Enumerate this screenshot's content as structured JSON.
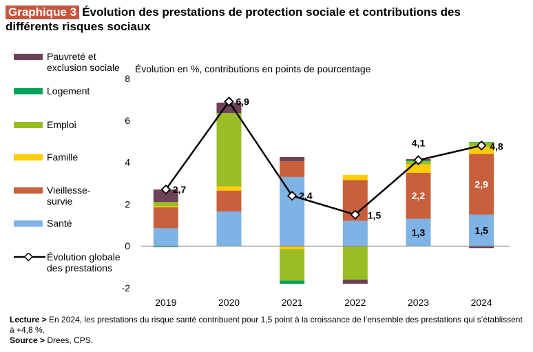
{
  "header": {
    "badge": "Graphique 3",
    "title": "Évolution des prestations de protection sociale et contributions des différents risques sociaux"
  },
  "legend": [
    {
      "label": "Pauvreté et exclusion sociale",
      "color": "#6d4256",
      "key": "pauvrete"
    },
    {
      "label": "Logement",
      "color": "#00a35a",
      "key": "logement"
    },
    {
      "label": "Emploi",
      "color": "#9abd25",
      "key": "emploi"
    },
    {
      "label": "Famille",
      "color": "#ffcc00",
      "key": "famille"
    },
    {
      "label": "Vieillesse-survie",
      "color": "#c8603d",
      "key": "vieillesse"
    },
    {
      "label": "Santé",
      "color": "#7fb2e5",
      "key": "sante"
    }
  ],
  "line_legend": "Évolution globale des prestations",
  "chart_data": {
    "type": "bar",
    "stacked": true,
    "subtitle": "Évolution en %, contributions en points de pourcentage",
    "categories": [
      "2019",
      "2020",
      "2021",
      "2022",
      "2023",
      "2024"
    ],
    "ylim": [
      -2,
      8
    ],
    "yticks": [
      -2,
      0,
      2,
      4,
      6,
      8
    ],
    "series": [
      {
        "name": "Santé",
        "key": "sante",
        "color": "#7fb2e5",
        "values": [
          0.85,
          1.65,
          3.3,
          1.2,
          1.3,
          1.5
        ]
      },
      {
        "name": "Vieillesse-survie",
        "key": "vieillesse",
        "color": "#c8603d",
        "values": [
          1.0,
          1.0,
          0.75,
          1.95,
          2.2,
          2.9
        ]
      },
      {
        "name": "Famille",
        "key": "famille",
        "color": "#ffcc00",
        "values": [
          0.05,
          0.2,
          -0.15,
          0.25,
          0.4,
          0.35
        ]
      },
      {
        "name": "Emploi",
        "key": "emploi",
        "color": "#9abd25",
        "values": [
          0.2,
          3.5,
          -1.5,
          -1.6,
          0.15,
          0.2
        ]
      },
      {
        "name": "Logement",
        "key": "logement",
        "color": "#00a35a",
        "values": [
          -0.05,
          0.0,
          -0.15,
          0.0,
          0.05,
          0.02
        ]
      },
      {
        "name": "Pauvreté et exclusion sociale",
        "key": "pauvrete",
        "color": "#6d4256",
        "values": [
          0.6,
          0.5,
          0.2,
          -0.2,
          0.05,
          -0.1
        ]
      }
    ],
    "line": {
      "name": "Évolution globale des prestations",
      "values": [
        2.7,
        6.9,
        2.4,
        1.5,
        4.1,
        4.8
      ],
      "labels": [
        "2,7",
        "6,9",
        "2,4",
        "1,5",
        "4,1",
        "4,8"
      ]
    },
    "data_labels": [
      {
        "category": "2023",
        "series": "sante",
        "text": "1,3"
      },
      {
        "category": "2023",
        "series": "vieillesse",
        "text": "2,2"
      },
      {
        "category": "2024",
        "series": "sante",
        "text": "1,5"
      },
      {
        "category": "2024",
        "series": "vieillesse",
        "text": "2,9"
      }
    ]
  },
  "footer": {
    "lecture_label": "Lecture >",
    "lecture_text": "En 2024, les prestations du risque santé contribuent pour 1,5 point à la croissance de l’ensemble des prestations qui s’établissent à +4,8 %.",
    "source_label": "Source >",
    "source_text": "Drees, CPS."
  }
}
